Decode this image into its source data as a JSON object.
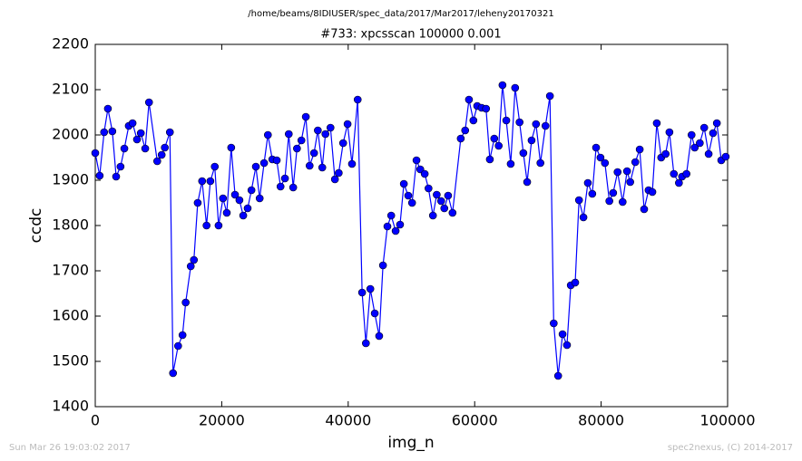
{
  "chart_data": {
    "type": "line",
    "suptitle": "/home/beams/8IDIUSER/spec_data/2017/Mar2017/leheny20170321",
    "title": "#733: xpcsscan 100000 0.001",
    "x_label": "img_n",
    "y_label": "ccdc",
    "footer_left": "Sun Mar 26 19:03:02 2017",
    "footer_right": "spec2nexus, (C) 2014-2017",
    "color": "#0000ff",
    "xlim": [
      0,
      100000
    ],
    "xticks": [
      0,
      20000,
      40000,
      60000,
      80000,
      100000
    ],
    "ylim": [
      1400,
      2200
    ],
    "yticks": [
      1400,
      1500,
      1600,
      1700,
      1800,
      1900,
      2000,
      2100,
      2200
    ],
    "x": [
      0,
      700,
      1400,
      2000,
      2700,
      3300,
      4000,
      4600,
      5300,
      5900,
      6600,
      7200,
      7900,
      8500,
      9800,
      10500,
      11000,
      11800,
      12300,
      13100,
      13800,
      14300,
      15100,
      15600,
      16200,
      16900,
      17600,
      18200,
      18900,
      19500,
      20200,
      20800,
      21500,
      22100,
      22800,
      23400,
      24100,
      24700,
      25400,
      26000,
      26700,
      27300,
      28000,
      28700,
      29300,
      30000,
      30600,
      31300,
      31900,
      32600,
      33300,
      33900,
      34600,
      35200,
      35900,
      36400,
      37200,
      37900,
      38500,
      39200,
      39900,
      40600,
      41500,
      42200,
      42800,
      43500,
      44200,
      44900,
      45500,
      46200,
      46800,
      47500,
      48200,
      48800,
      49500,
      50100,
      50800,
      51400,
      52100,
      52700,
      53400,
      54000,
      54700,
      55200,
      55800,
      56500,
      57800,
      58500,
      59100,
      59800,
      60400,
      61100,
      61800,
      62400,
      63100,
      63800,
      64400,
      65000,
      65700,
      66400,
      67100,
      67700,
      68300,
      69000,
      69700,
      70400,
      71200,
      71900,
      72500,
      73200,
      73900,
      74600,
      75200,
      75900,
      76500,
      77200,
      77900,
      78600,
      79200,
      79900,
      80600,
      81300,
      81900,
      82600,
      83400,
      84100,
      84600,
      85400,
      86100,
      86800,
      87500,
      88100,
      88800,
      89500,
      90200,
      90800,
      91500,
      92300,
      92800,
      93500,
      94300,
      94800,
      95600,
      96300,
      97000,
      97700,
      98300,
      99000,
      99700
    ],
    "values": [
      1960,
      1910,
      2006,
      2058,
      2008,
      1908,
      1930,
      1970,
      2020,
      2026,
      1990,
      2004,
      1970,
      2072,
      1942,
      1956,
      1972,
      2006,
      1474,
      1534,
      1558,
      1630,
      1710,
      1724,
      1850,
      1898,
      1800,
      1898,
      1930,
      1800,
      1860,
      1828,
      1972,
      1868,
      1856,
      1822,
      1838,
      1878,
      1930,
      1860,
      1938,
      2000,
      1946,
      1944,
      1886,
      1904,
      2002,
      1884,
      1970,
      1988,
      2040,
      1932,
      1960,
      2010,
      1928,
      2002,
      2016,
      1902,
      1916,
      1982,
      2024,
      1936,
      2078,
      1652,
      1540,
      1660,
      1606,
      1556,
      1712,
      1798,
      1822,
      1788,
      1802,
      1892,
      1866,
      1850,
      1944,
      1924,
      1914,
      1882,
      1822,
      1868,
      1854,
      1838,
      1866,
      1828,
      1992,
      2010,
      2078,
      2032,
      2064,
      2060,
      2058,
      1946,
      1992,
      1976,
      2110,
      2032,
      1936,
      2104,
      2028,
      1960,
      1896,
      1988,
      2024,
      1938,
      2020,
      2086,
      1584,
      1468,
      1560,
      1536,
      1668,
      1674,
      1856,
      1818,
      1894,
      1870,
      1972,
      1950,
      1938,
      1854,
      1872,
      1918,
      1852,
      1920,
      1896,
      1940,
      1968,
      1836,
      1878,
      1874,
      2026,
      1950,
      1958,
      2006,
      1914,
      1894,
      1908,
      1914,
      2000,
      1972,
      1982,
      2016,
      1958,
      2004,
      2026,
      1944,
      1952
    ]
  }
}
